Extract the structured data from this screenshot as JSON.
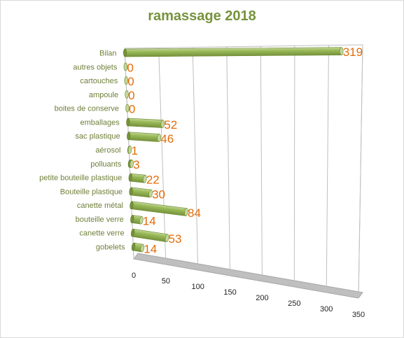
{
  "chart_data": {
    "type": "bar",
    "orientation": "horizontal",
    "style": "3d-cylinder",
    "title": "ramassage 2018",
    "categories": [
      "Bilan",
      "autres objets",
      "cartouches",
      "ampoule",
      "boites de conserve",
      "emballages",
      "sac plastique",
      "aérosol",
      "polluants",
      "petite bouteille plastique",
      "Bouteille plastique",
      "canette métal",
      "bouteille verre",
      "canette verre",
      "gobelets"
    ],
    "values": [
      319,
      0,
      0,
      0,
      0,
      52,
      46,
      1,
      3,
      22,
      30,
      84,
      14,
      53,
      14
    ],
    "data_labels": [
      "319",
      "0",
      "0",
      "0",
      "0",
      "52",
      "46",
      "1",
      "3",
      "22",
      "30",
      "84",
      "14",
      "53",
      "14"
    ],
    "x_ticks": [
      "0",
      "50",
      "100",
      "150",
      "200",
      "250",
      "300",
      "350"
    ],
    "xlim": [
      0,
      350
    ],
    "grid": true,
    "legend": "none",
    "colors": {
      "bar_fill": "#9bbb59",
      "bar_light": "#c3d69b",
      "bar_dark": "#76923c",
      "data_label": "#e46c0a",
      "title": "#77933c",
      "category_label": "#6f7f3a",
      "floor": "#bfbfbf",
      "gridline": "#bfbfbf"
    }
  }
}
